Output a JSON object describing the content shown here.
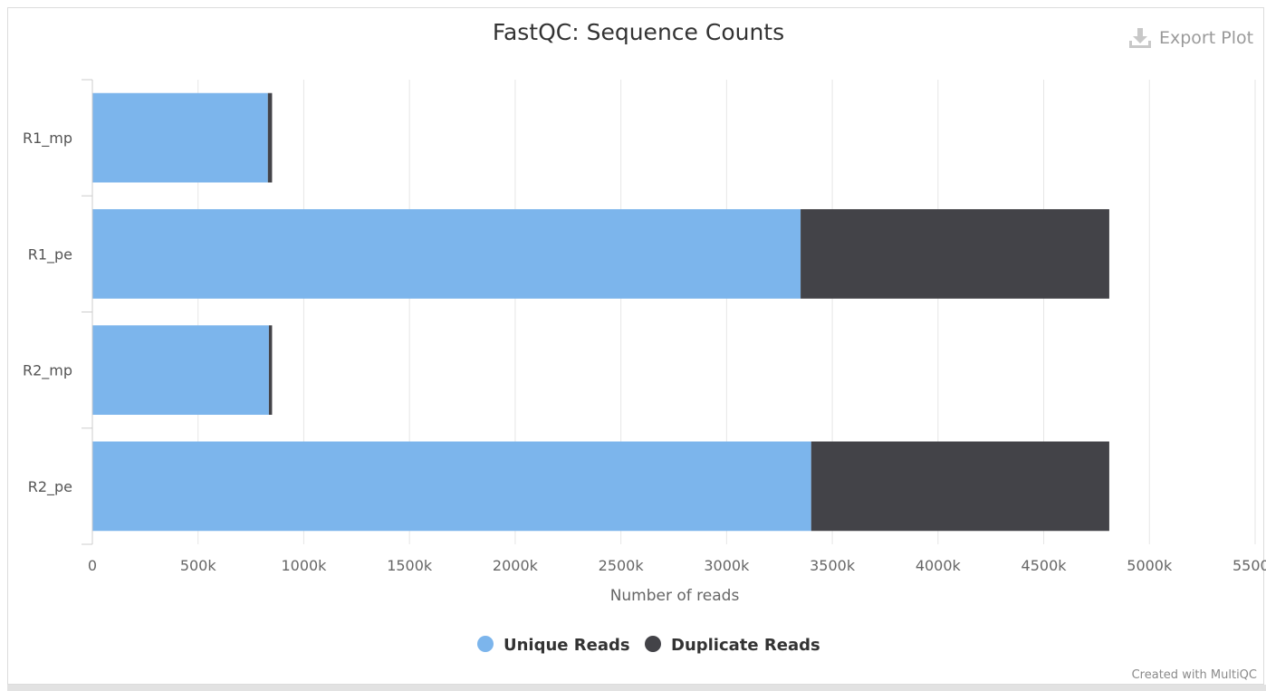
{
  "export_label": "Export Plot",
  "credit": "Created with MultiQC",
  "chart_data": {
    "type": "bar",
    "orientation": "horizontal",
    "stacked": true,
    "title": "FastQC: Sequence Counts",
    "xlabel": "Number of reads",
    "ylabel": "",
    "xlim": [
      0,
      5500000
    ],
    "x_ticks": [
      0,
      500000,
      1000000,
      1500000,
      2000000,
      2500000,
      3000000,
      3500000,
      4000000,
      4500000,
      5000000,
      5500000
    ],
    "x_tick_labels": [
      "0",
      "500k",
      "1000k",
      "1500k",
      "2000k",
      "2500k",
      "3000k",
      "3500k",
      "4000k",
      "4500k",
      "5000k",
      "5500k"
    ],
    "categories": [
      "R1_mp",
      "R1_pe",
      "R2_mp",
      "R2_pe"
    ],
    "series": [
      {
        "name": "Unique Reads",
        "color": "#7cb5ec",
        "values": [
          830000,
          3350000,
          835000,
          3400000
        ]
      },
      {
        "name": "Duplicate Reads",
        "color": "#434348",
        "values": [
          20000,
          1460000,
          15000,
          1410000
        ]
      }
    ],
    "grid": true,
    "legend_position": "bottom-center"
  }
}
